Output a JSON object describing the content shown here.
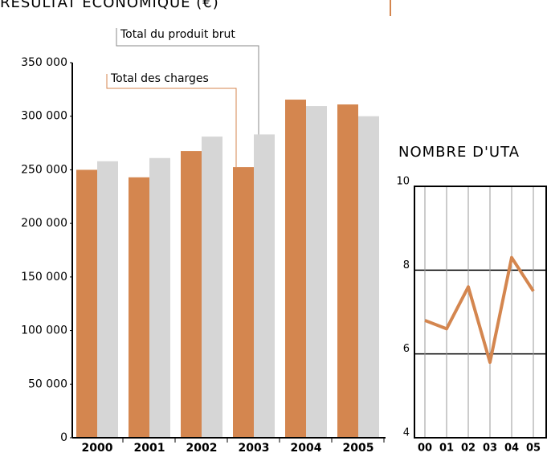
{
  "chart_data": [
    {
      "type": "bar",
      "title": "RÉSULTAT ÉCONOMIQUE (€)",
      "categories": [
        "2000",
        "2001",
        "2002",
        "2003",
        "2004",
        "2005"
      ],
      "series": [
        {
          "name": "Total des charges",
          "color": "#d4864f",
          "values": [
            250000,
            243000,
            267500,
            252500,
            315500,
            311000
          ]
        },
        {
          "name": "Total du produit brut",
          "color": "#d6d6d6",
          "values": [
            258000,
            261000,
            281000,
            283000,
            309500,
            300000
          ]
        }
      ],
      "ylim": [
        0,
        350000
      ],
      "yticks": [
        0,
        {
          "value": 50000,
          "label": "50 000"
        },
        {
          "value": 100000,
          "label": "100 000"
        },
        {
          "value": 150000,
          "label": "150 000"
        },
        {
          "value": 200000,
          "label": "200 000"
        },
        {
          "value": 250000,
          "label": "250 000"
        },
        {
          "value": 300000,
          "label": "300 000"
        },
        {
          "value": 350000,
          "label": "350 000"
        }
      ],
      "grid": false
    },
    {
      "type": "line",
      "title": "NOMBRE D'UTA",
      "categories": [
        "00",
        "01",
        "02",
        "03",
        "04",
        "05"
      ],
      "values": [
        6.8,
        6.6,
        7.6,
        5.8,
        8.3,
        7.5
      ],
      "color": "#d4864f",
      "ylim": [
        4,
        10
      ],
      "yticks": [
        4,
        6,
        8,
        10
      ],
      "grid": true
    }
  ]
}
